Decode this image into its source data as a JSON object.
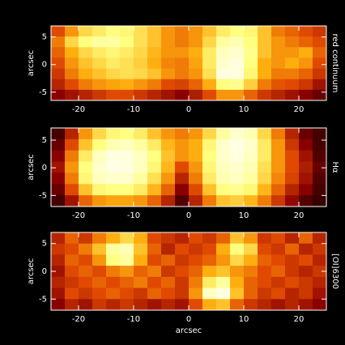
{
  "chart_data": [
    {
      "type": "heatmap",
      "ylabel": "arcsec",
      "side_label": "red continuum",
      "xlim": [
        -25,
        25
      ],
      "ylim": [
        -6.5,
        7
      ],
      "xticks": [
        -20,
        -10,
        0,
        10,
        20
      ],
      "yticks": [
        -5,
        0,
        5
      ],
      "zlim": [
        0,
        100
      ],
      "colormap": [
        "#000000",
        "#8a0000",
        "#e04a00",
        "#ffae10",
        "#ffff80",
        "#ffffff"
      ],
      "values": [
        [
          40,
          55,
          70,
          75,
          80,
          78,
          72,
          65,
          55,
          50,
          55,
          65,
          75,
          80,
          78,
          65,
          50,
          45,
          40,
          35
        ],
        [
          50,
          70,
          80,
          85,
          85,
          80,
          72,
          65,
          55,
          50,
          55,
          70,
          85,
          88,
          80,
          65,
          55,
          50,
          45,
          40
        ],
        [
          45,
          60,
          70,
          75,
          78,
          75,
          70,
          62,
          55,
          55,
          60,
          75,
          90,
          92,
          82,
          65,
          55,
          55,
          60,
          45
        ],
        [
          40,
          55,
          65,
          70,
          75,
          72,
          68,
          60,
          52,
          50,
          58,
          75,
          92,
          95,
          80,
          60,
          55,
          60,
          55,
          40
        ],
        [
          35,
          50,
          60,
          65,
          70,
          72,
          70,
          65,
          55,
          50,
          55,
          72,
          95,
          95,
          78,
          60,
          50,
          50,
          45,
          35
        ],
        [
          30,
          40,
          50,
          55,
          58,
          60,
          55,
          50,
          40,
          38,
          45,
          60,
          80,
          82,
          68,
          50,
          42,
          40,
          35,
          25
        ],
        [
          20,
          25,
          30,
          35,
          40,
          40,
          35,
          30,
          25,
          20,
          28,
          40,
          55,
          55,
          45,
          35,
          30,
          25,
          20,
          15
        ]
      ]
    },
    {
      "type": "heatmap",
      "ylabel": "arcsec",
      "side_label": "Hα",
      "xlim": [
        -25,
        25
      ],
      "ylim": [
        -7,
        7.2
      ],
      "xticks": [
        -20,
        -10,
        0,
        10,
        20
      ],
      "yticks": [
        -5,
        0,
        5
      ],
      "zlim": [
        0,
        100
      ],
      "colormap": [
        "#000000",
        "#8a0000",
        "#e04a00",
        "#ffae10",
        "#ffff80",
        "#ffffff"
      ],
      "values": [
        [
          10,
          30,
          55,
          70,
          78,
          80,
          75,
          65,
          55,
          50,
          55,
          70,
          85,
          92,
          88,
          70,
          50,
          30,
          15,
          10
        ],
        [
          15,
          40,
          65,
          80,
          88,
          90,
          85,
          75,
          62,
          55,
          60,
          78,
          92,
          96,
          92,
          75,
          55,
          35,
          20,
          10
        ],
        [
          20,
          50,
          75,
          90,
          95,
          95,
          90,
          80,
          65,
          55,
          60,
          80,
          92,
          95,
          90,
          75,
          55,
          40,
          25,
          12
        ],
        [
          25,
          55,
          80,
          92,
          96,
          95,
          90,
          78,
          62,
          40,
          55,
          78,
          90,
          92,
          88,
          72,
          55,
          40,
          28,
          15
        ],
        [
          20,
          50,
          78,
          90,
          92,
          92,
          85,
          72,
          55,
          30,
          50,
          75,
          88,
          90,
          85,
          70,
          52,
          38,
          25,
          12
        ],
        [
          15,
          40,
          65,
          78,
          80,
          80,
          75,
          62,
          45,
          20,
          40,
          65,
          80,
          82,
          78,
          62,
          45,
          30,
          20,
          10
        ],
        [
          10,
          25,
          45,
          55,
          58,
          58,
          55,
          45,
          30,
          12,
          30,
          50,
          65,
          68,
          62,
          50,
          35,
          22,
          12,
          8
        ]
      ]
    },
    {
      "type": "heatmap",
      "ylabel": "arcsec",
      "xlabel": "arcsec",
      "side_label": "[OI]6300",
      "xlim": [
        -25,
        25
      ],
      "ylim": [
        -7,
        7
      ],
      "xticks": [
        -20,
        -10,
        0,
        10,
        20
      ],
      "yticks": [
        -5,
        0,
        5
      ],
      "zlim": [
        0,
        100
      ],
      "colormap": [
        "#000000",
        "#8a0000",
        "#e04a00",
        "#ffae10",
        "#ffff80",
        "#ffffff"
      ],
      "values": [
        [
          30,
          45,
          35,
          50,
          60,
          70,
          60,
          40,
          35,
          30,
          40,
          35,
          45,
          65,
          55,
          35,
          40,
          30,
          45,
          30
        ],
        [
          35,
          40,
          50,
          65,
          85,
          88,
          65,
          45,
          30,
          40,
          35,
          40,
          60,
          80,
          70,
          40,
          35,
          45,
          30,
          35
        ],
        [
          30,
          45,
          40,
          55,
          80,
          85,
          60,
          40,
          45,
          35,
          40,
          45,
          55,
          70,
          60,
          45,
          40,
          35,
          40,
          30
        ],
        [
          25,
          40,
          45,
          40,
          50,
          55,
          45,
          50,
          35,
          40,
          45,
          60,
          65,
          55,
          50,
          40,
          45,
          35,
          30,
          35
        ],
        [
          30,
          35,
          40,
          45,
          40,
          45,
          50,
          40,
          45,
          35,
          50,
          75,
          85,
          60,
          45,
          40,
          35,
          40,
          35,
          30
        ],
        [
          25,
          40,
          35,
          40,
          45,
          40,
          35,
          45,
          40,
          35,
          55,
          90,
          95,
          65,
          45,
          35,
          40,
          30,
          35,
          25
        ],
        [
          20,
          30,
          25,
          35,
          30,
          35,
          30,
          25,
          30,
          25,
          40,
          60,
          65,
          45,
          35,
          30,
          25,
          30,
          25,
          20
        ]
      ]
    }
  ]
}
